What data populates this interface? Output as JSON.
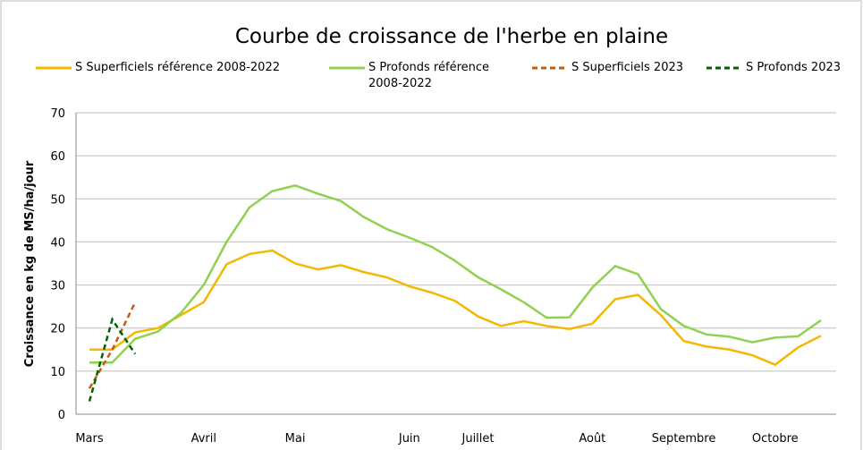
{
  "chart_data": {
    "type": "line",
    "title": "Courbe de croissance de l'herbe en plaine",
    "y_label": "Croissance en kg de MS/ha/jour",
    "categories": [
      "Mars",
      null,
      null,
      null,
      null,
      "Avril",
      null,
      null,
      null,
      "Mai",
      null,
      null,
      null,
      null,
      "Juin",
      null,
      null,
      "Juillet",
      null,
      null,
      null,
      null,
      "Août",
      null,
      null,
      null,
      "Septembre",
      null,
      null,
      null,
      "Octobre",
      null,
      null
    ],
    "series": [
      {
        "name": "S Superficiels référence 2008-2022",
        "color": "#f5b800",
        "dash": false,
        "values": [
          15,
          15,
          19,
          20,
          23,
          26,
          34.8,
          37.2,
          38,
          35,
          33.6,
          34.6,
          33,
          31.8,
          29.7,
          28.2,
          26.3,
          22.7,
          20.5,
          21.6,
          20.5,
          19.8,
          21,
          26.7,
          27.7,
          23,
          17,
          15.7,
          15,
          13.7,
          11.5,
          15.5,
          18.2
        ]
      },
      {
        "name": "S Profonds référence 2008-2022",
        "color": "#92d050",
        "dash": false,
        "values": [
          12,
          12,
          17.5,
          19.2,
          23.5,
          30,
          40,
          48,
          51.8,
          53.1,
          51.2,
          49.5,
          45.8,
          43,
          41,
          38.8,
          35.6,
          31.8,
          29,
          26,
          22.4,
          22.5,
          29.4,
          34.4,
          32.5,
          24.4,
          20.5,
          18.5,
          18,
          16.7,
          17.8,
          18.1,
          21.8
        ]
      },
      {
        "name": "S Superficiels 2023",
        "color": "#c55a11",
        "dash": true,
        "values": [
          6,
          15,
          26,
          null,
          null,
          null,
          null,
          null,
          null,
          null,
          null,
          null,
          null,
          null,
          null,
          null,
          null,
          null,
          null,
          null,
          null,
          null,
          null,
          null,
          null,
          null,
          null,
          null,
          null,
          null,
          null,
          null,
          null
        ]
      },
      {
        "name": "S Profonds 2023",
        "color": "#006400",
        "dash": true,
        "values": [
          3,
          22,
          14,
          null,
          null,
          null,
          null,
          null,
          null,
          null,
          null,
          null,
          null,
          null,
          null,
          null,
          null,
          null,
          null,
          null,
          null,
          null,
          null,
          null,
          null,
          null,
          null,
          null,
          null,
          null,
          null,
          null,
          null
        ]
      }
    ],
    "ylim": [
      0,
      70
    ],
    "yticks": [
      0,
      10,
      20,
      30,
      40,
      50,
      60,
      70
    ],
    "grid": true
  }
}
